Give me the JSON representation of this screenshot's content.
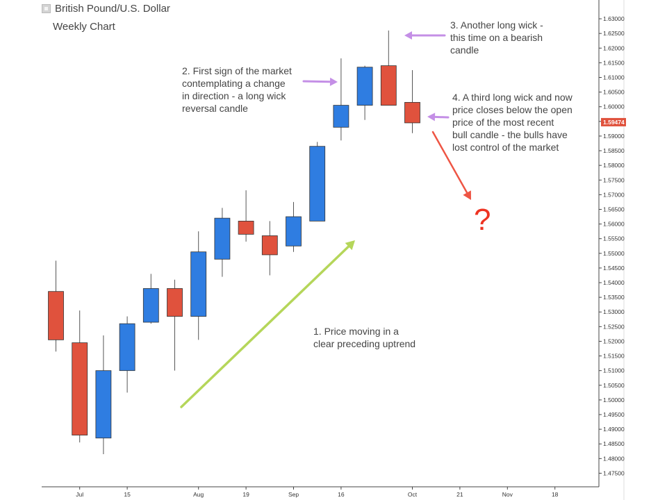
{
  "header": {
    "title": "British Pound/U.S. Dollar",
    "subtitle": "Weekly Chart"
  },
  "chart_data": {
    "type": "candlestick",
    "yaxis": {
      "range": [
        1.4725,
        1.6325
      ],
      "tick_labels": [
        "1.47500",
        "1.48000",
        "1.48500",
        "1.49000",
        "1.49500",
        "1.50000",
        "1.50500",
        "1.51000",
        "1.51500",
        "1.52000",
        "1.52500",
        "1.53000",
        "1.53500",
        "1.54000",
        "1.54500",
        "1.55000",
        "1.55500",
        "1.56000",
        "1.56500",
        "1.57000",
        "1.57500",
        "1.58000",
        "1.58500",
        "1.59000",
        "1.59500",
        "1.60000",
        "1.60500",
        "1.61000",
        "1.61500",
        "1.62000",
        "1.62500",
        "1.63000"
      ],
      "current_price": "1.59474"
    },
    "xaxis": {
      "tick_labels": [
        {
          "label": "Jul",
          "index": 1
        },
        {
          "label": "15",
          "index": 3
        },
        {
          "label": "Aug",
          "index": 6
        },
        {
          "label": "19",
          "index": 8
        },
        {
          "label": "Sep",
          "index": 10
        },
        {
          "label": "16",
          "index": 12
        },
        {
          "label": "Oct",
          "index": 15
        },
        {
          "label": "21",
          "index": 17
        },
        {
          "label": "Nov",
          "index": 19
        },
        {
          "label": "18",
          "index": 21
        }
      ],
      "slot_count": 23
    },
    "candles": [
      {
        "open": 1.537,
        "high": 1.5475,
        "low": 1.5165,
        "close": 1.5205
      },
      {
        "open": 1.5195,
        "high": 1.5305,
        "low": 1.4855,
        "close": 1.488
      },
      {
        "open": 1.487,
        "high": 1.522,
        "low": 1.4815,
        "close": 1.51
      },
      {
        "open": 1.51,
        "high": 1.5285,
        "low": 1.5025,
        "close": 1.526
      },
      {
        "open": 1.5265,
        "high": 1.543,
        "low": 1.526,
        "close": 1.538
      },
      {
        "open": 1.538,
        "high": 1.541,
        "low": 1.51,
        "close": 1.5285
      },
      {
        "open": 1.5285,
        "high": 1.5575,
        "low": 1.5205,
        "close": 1.5505
      },
      {
        "open": 1.548,
        "high": 1.5655,
        "low": 1.542,
        "close": 1.562
      },
      {
        "open": 1.561,
        "high": 1.5715,
        "low": 1.554,
        "close": 1.5565
      },
      {
        "open": 1.556,
        "high": 1.561,
        "low": 1.5425,
        "close": 1.5495
      },
      {
        "open": 1.5525,
        "high": 1.5675,
        "low": 1.5505,
        "close": 1.5625
      },
      {
        "open": 1.561,
        "high": 1.588,
        "low": 1.561,
        "close": 1.5865
      },
      {
        "open": 1.593,
        "high": 1.6165,
        "low": 1.5885,
        "close": 1.6005
      },
      {
        "open": 1.6005,
        "high": 1.614,
        "low": 1.5955,
        "close": 1.6135
      },
      {
        "open": 1.614,
        "high": 1.626,
        "low": 1.6005,
        "close": 1.6005
      },
      {
        "open": 1.6015,
        "high": 1.6125,
        "low": 1.591,
        "close": 1.5945
      }
    ],
    "colors": {
      "bull": "#2f7de1",
      "bear": "#e0523d",
      "price_tag": "#e0523d",
      "uptrend_arrow": "#b5d65a",
      "note_arrow": "#c48fe6",
      "down_arrow": "#ee5544"
    }
  },
  "annotations": [
    {
      "text": "1. Price moving in a\nclear preceding uptrend"
    },
    {
      "text": "2. First sign of the market\ncontemplating a change\nin direction - a long wick\nreversal candle"
    },
    {
      "text": "3. Another long wick -\nthis time on a bearish\ncandle"
    },
    {
      "text": "4. A third long wick and now\nprice closes below the open\nprice of the most recent\nbull candle - the bulls have\nlost control of the market"
    },
    {
      "text": "?"
    }
  ]
}
